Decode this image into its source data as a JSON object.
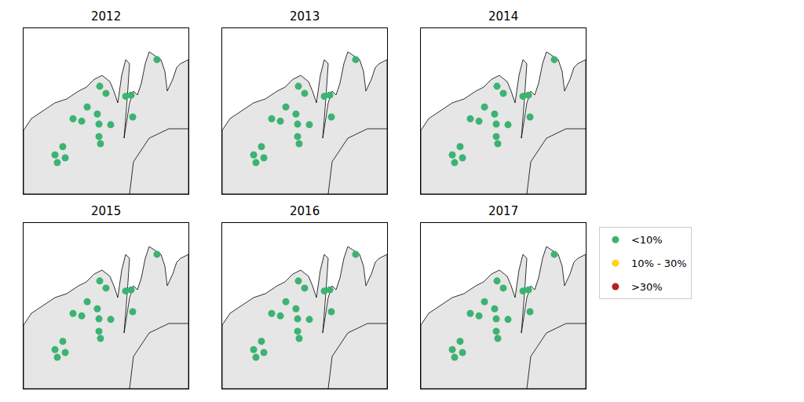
{
  "chart_data": {
    "type": "scatter",
    "xlim": [
      15,
      30
    ],
    "ylim": [
      68.5,
      71.3
    ],
    "tick_labels": false,
    "legend": "right",
    "series": [
      {
        "name": "<10%",
        "color": "#3cb371"
      },
      {
        "name": "10% - 30%",
        "color": "#ffd700"
      },
      {
        "name": ">30%",
        "color": "#b22222"
      }
    ],
    "panels": [
      {
        "title": "2012",
        "x": [
          27.14,
          20.79,
          21.93,
          22.5,
          19.5,
          20.29,
          21.71,
          21.86,
          22.93,
          21.86,
          22.0,
          24.29,
          24.79,
          24.93,
          18.57,
          17.86,
          18.79,
          18.07
        ],
        "y": [
          70.77,
          69.97,
          70.32,
          70.2,
          69.77,
          69.73,
          69.85,
          69.68,
          69.67,
          69.47,
          69.35,
          70.15,
          70.17,
          69.8,
          69.3,
          69.16,
          69.11,
          69.03
        ],
        "category": [
          "<10%",
          "<10%",
          "<10%",
          "<10%",
          "<10%",
          "<10%",
          "<10%",
          "<10%",
          "<10%",
          "<10%",
          "<10%",
          "<10%",
          "<10%",
          "<10%",
          "<10%",
          "<10%",
          "<10%",
          "<10%"
        ]
      },
      {
        "title": "2013",
        "x": [
          27.14,
          20.79,
          21.93,
          22.5,
          19.5,
          20.29,
          21.71,
          21.86,
          22.93,
          21.86,
          22.0,
          24.29,
          24.79,
          24.93,
          18.57,
          17.86,
          18.79,
          18.07
        ],
        "y": [
          70.77,
          69.97,
          70.32,
          70.2,
          69.77,
          69.73,
          69.85,
          69.68,
          69.67,
          69.47,
          69.35,
          70.15,
          70.17,
          69.8,
          69.3,
          69.16,
          69.11,
          69.03
        ],
        "category": [
          "<10%",
          "<10%",
          "<10%",
          "<10%",
          "<10%",
          "<10%",
          "<10%",
          "<10%",
          "<10%",
          "<10%",
          "<10%",
          "<10%",
          "<10%",
          "<10%",
          "<10%",
          "<10%",
          "<10%",
          "<10%"
        ]
      },
      {
        "title": "2014",
        "x": [
          27.14,
          20.79,
          21.93,
          22.5,
          19.5,
          20.29,
          21.71,
          21.86,
          22.93,
          21.86,
          22.0,
          24.29,
          24.79,
          24.93,
          18.57,
          17.86,
          18.79,
          18.07
        ],
        "y": [
          70.77,
          69.97,
          70.32,
          70.2,
          69.77,
          69.73,
          69.85,
          69.68,
          69.67,
          69.47,
          69.35,
          70.15,
          70.17,
          69.8,
          69.3,
          69.16,
          69.11,
          69.03
        ],
        "category": [
          "<10%",
          "<10%",
          "<10%",
          "<10%",
          "<10%",
          "<10%",
          "<10%",
          "<10%",
          "<10%",
          "<10%",
          "<10%",
          "<10%",
          "<10%",
          "<10%",
          "<10%",
          "<10%",
          "<10%",
          "<10%"
        ]
      },
      {
        "title": "2015",
        "x": [
          27.14,
          20.79,
          21.93,
          22.5,
          19.5,
          20.29,
          21.71,
          21.86,
          22.93,
          21.86,
          22.0,
          24.29,
          24.79,
          24.93,
          18.57,
          17.86,
          18.79,
          18.07
        ],
        "y": [
          70.77,
          69.97,
          70.32,
          70.2,
          69.77,
          69.73,
          69.85,
          69.68,
          69.67,
          69.47,
          69.35,
          70.15,
          70.17,
          69.8,
          69.3,
          69.16,
          69.11,
          69.03
        ],
        "category": [
          "<10%",
          "<10%",
          "<10%",
          "<10%",
          "<10%",
          "<10%",
          "<10%",
          "<10%",
          "<10%",
          "<10%",
          "<10%",
          "<10%",
          "<10%",
          "<10%",
          "<10%",
          "<10%",
          "<10%",
          "<10%"
        ]
      },
      {
        "title": "2016",
        "x": [
          27.14,
          20.79,
          21.93,
          22.5,
          19.5,
          20.29,
          21.71,
          21.86,
          22.93,
          21.86,
          22.0,
          24.29,
          24.79,
          24.93,
          18.57,
          17.86,
          18.79,
          18.07
        ],
        "y": [
          70.77,
          69.97,
          70.32,
          70.2,
          69.77,
          69.73,
          69.85,
          69.68,
          69.67,
          69.47,
          69.35,
          70.15,
          70.17,
          69.8,
          69.3,
          69.16,
          69.11,
          69.03
        ],
        "category": [
          "<10%",
          "<10%",
          "<10%",
          "<10%",
          "<10%",
          "<10%",
          "<10%",
          "<10%",
          "<10%",
          "<10%",
          "<10%",
          "<10%",
          "<10%",
          "<10%",
          "<10%",
          "<10%",
          "<10%",
          "<10%"
        ]
      },
      {
        "title": "2017",
        "x": [
          27.14,
          20.79,
          21.93,
          22.5,
          19.5,
          20.29,
          21.71,
          21.86,
          22.93,
          21.86,
          22.0,
          24.29,
          24.79,
          24.93,
          18.57,
          17.86,
          18.79,
          18.07
        ],
        "y": [
          70.77,
          69.97,
          70.32,
          70.2,
          69.77,
          69.73,
          69.85,
          69.68,
          69.67,
          69.47,
          69.35,
          70.15,
          70.17,
          69.8,
          69.3,
          69.16,
          69.11,
          69.03
        ],
        "category": [
          "<10%",
          "<10%",
          "<10%",
          "<10%",
          "<10%",
          "<10%",
          "<10%",
          "<10%",
          "<10%",
          "<10%",
          "<10%",
          "<10%",
          "<10%",
          "<10%",
          "<10%",
          "<10%",
          "<10%",
          "<10%"
        ]
      }
    ]
  }
}
